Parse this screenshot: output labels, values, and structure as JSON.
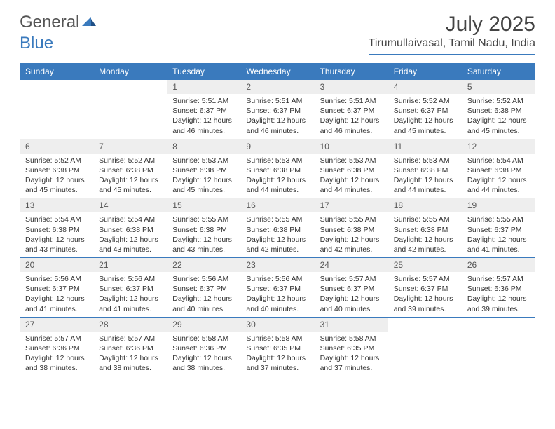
{
  "brand": {
    "part1": "General",
    "part2": "Blue"
  },
  "title": "July 2025",
  "location": "Tirumullaivasal, Tamil Nadu, India",
  "colors": {
    "header_bg": "#3a7abd",
    "header_text": "#ffffff",
    "daynum_bg": "#eeeeee",
    "text": "#333333",
    "rule": "#3a7abd"
  },
  "day_names": [
    "Sunday",
    "Monday",
    "Tuesday",
    "Wednesday",
    "Thursday",
    "Friday",
    "Saturday"
  ],
  "weeks": [
    [
      {
        "n": "",
        "sr": "",
        "ss": "",
        "dl": ""
      },
      {
        "n": "",
        "sr": "",
        "ss": "",
        "dl": ""
      },
      {
        "n": "1",
        "sr": "Sunrise: 5:51 AM",
        "ss": "Sunset: 6:37 PM",
        "dl": "Daylight: 12 hours and 46 minutes."
      },
      {
        "n": "2",
        "sr": "Sunrise: 5:51 AM",
        "ss": "Sunset: 6:37 PM",
        "dl": "Daylight: 12 hours and 46 minutes."
      },
      {
        "n": "3",
        "sr": "Sunrise: 5:51 AM",
        "ss": "Sunset: 6:37 PM",
        "dl": "Daylight: 12 hours and 46 minutes."
      },
      {
        "n": "4",
        "sr": "Sunrise: 5:52 AM",
        "ss": "Sunset: 6:37 PM",
        "dl": "Daylight: 12 hours and 45 minutes."
      },
      {
        "n": "5",
        "sr": "Sunrise: 5:52 AM",
        "ss": "Sunset: 6:38 PM",
        "dl": "Daylight: 12 hours and 45 minutes."
      }
    ],
    [
      {
        "n": "6",
        "sr": "Sunrise: 5:52 AM",
        "ss": "Sunset: 6:38 PM",
        "dl": "Daylight: 12 hours and 45 minutes."
      },
      {
        "n": "7",
        "sr": "Sunrise: 5:52 AM",
        "ss": "Sunset: 6:38 PM",
        "dl": "Daylight: 12 hours and 45 minutes."
      },
      {
        "n": "8",
        "sr": "Sunrise: 5:53 AM",
        "ss": "Sunset: 6:38 PM",
        "dl": "Daylight: 12 hours and 45 minutes."
      },
      {
        "n": "9",
        "sr": "Sunrise: 5:53 AM",
        "ss": "Sunset: 6:38 PM",
        "dl": "Daylight: 12 hours and 44 minutes."
      },
      {
        "n": "10",
        "sr": "Sunrise: 5:53 AM",
        "ss": "Sunset: 6:38 PM",
        "dl": "Daylight: 12 hours and 44 minutes."
      },
      {
        "n": "11",
        "sr": "Sunrise: 5:53 AM",
        "ss": "Sunset: 6:38 PM",
        "dl": "Daylight: 12 hours and 44 minutes."
      },
      {
        "n": "12",
        "sr": "Sunrise: 5:54 AM",
        "ss": "Sunset: 6:38 PM",
        "dl": "Daylight: 12 hours and 44 minutes."
      }
    ],
    [
      {
        "n": "13",
        "sr": "Sunrise: 5:54 AM",
        "ss": "Sunset: 6:38 PM",
        "dl": "Daylight: 12 hours and 43 minutes."
      },
      {
        "n": "14",
        "sr": "Sunrise: 5:54 AM",
        "ss": "Sunset: 6:38 PM",
        "dl": "Daylight: 12 hours and 43 minutes."
      },
      {
        "n": "15",
        "sr": "Sunrise: 5:55 AM",
        "ss": "Sunset: 6:38 PM",
        "dl": "Daylight: 12 hours and 43 minutes."
      },
      {
        "n": "16",
        "sr": "Sunrise: 5:55 AM",
        "ss": "Sunset: 6:38 PM",
        "dl": "Daylight: 12 hours and 42 minutes."
      },
      {
        "n": "17",
        "sr": "Sunrise: 5:55 AM",
        "ss": "Sunset: 6:38 PM",
        "dl": "Daylight: 12 hours and 42 minutes."
      },
      {
        "n": "18",
        "sr": "Sunrise: 5:55 AM",
        "ss": "Sunset: 6:38 PM",
        "dl": "Daylight: 12 hours and 42 minutes."
      },
      {
        "n": "19",
        "sr": "Sunrise: 5:55 AM",
        "ss": "Sunset: 6:37 PM",
        "dl": "Daylight: 12 hours and 41 minutes."
      }
    ],
    [
      {
        "n": "20",
        "sr": "Sunrise: 5:56 AM",
        "ss": "Sunset: 6:37 PM",
        "dl": "Daylight: 12 hours and 41 minutes."
      },
      {
        "n": "21",
        "sr": "Sunrise: 5:56 AM",
        "ss": "Sunset: 6:37 PM",
        "dl": "Daylight: 12 hours and 41 minutes."
      },
      {
        "n": "22",
        "sr": "Sunrise: 5:56 AM",
        "ss": "Sunset: 6:37 PM",
        "dl": "Daylight: 12 hours and 40 minutes."
      },
      {
        "n": "23",
        "sr": "Sunrise: 5:56 AM",
        "ss": "Sunset: 6:37 PM",
        "dl": "Daylight: 12 hours and 40 minutes."
      },
      {
        "n": "24",
        "sr": "Sunrise: 5:57 AM",
        "ss": "Sunset: 6:37 PM",
        "dl": "Daylight: 12 hours and 40 minutes."
      },
      {
        "n": "25",
        "sr": "Sunrise: 5:57 AM",
        "ss": "Sunset: 6:37 PM",
        "dl": "Daylight: 12 hours and 39 minutes."
      },
      {
        "n": "26",
        "sr": "Sunrise: 5:57 AM",
        "ss": "Sunset: 6:36 PM",
        "dl": "Daylight: 12 hours and 39 minutes."
      }
    ],
    [
      {
        "n": "27",
        "sr": "Sunrise: 5:57 AM",
        "ss": "Sunset: 6:36 PM",
        "dl": "Daylight: 12 hours and 38 minutes."
      },
      {
        "n": "28",
        "sr": "Sunrise: 5:57 AM",
        "ss": "Sunset: 6:36 PM",
        "dl": "Daylight: 12 hours and 38 minutes."
      },
      {
        "n": "29",
        "sr": "Sunrise: 5:58 AM",
        "ss": "Sunset: 6:36 PM",
        "dl": "Daylight: 12 hours and 38 minutes."
      },
      {
        "n": "30",
        "sr": "Sunrise: 5:58 AM",
        "ss": "Sunset: 6:35 PM",
        "dl": "Daylight: 12 hours and 37 minutes."
      },
      {
        "n": "31",
        "sr": "Sunrise: 5:58 AM",
        "ss": "Sunset: 6:35 PM",
        "dl": "Daylight: 12 hours and 37 minutes."
      },
      {
        "n": "",
        "sr": "",
        "ss": "",
        "dl": ""
      },
      {
        "n": "",
        "sr": "",
        "ss": "",
        "dl": ""
      }
    ]
  ]
}
